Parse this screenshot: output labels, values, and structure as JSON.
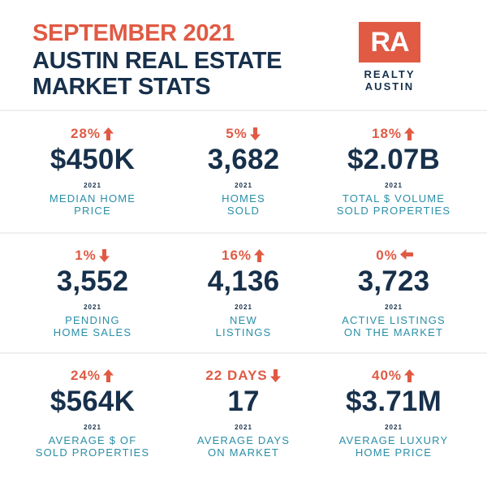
{
  "header": {
    "title_line1": "SEPTEMBER 2021",
    "title_line2": "AUSTIN REAL ESTATE",
    "title_line3": "MARKET STATS",
    "logo_letters": "RA",
    "logo_line1": "REALTY",
    "logo_line2": "AUSTIN"
  },
  "colors": {
    "accent": "#e05a44",
    "navy": "#17304b",
    "teal": "#2a8fa8"
  },
  "stats": [
    {
      "change": "28%",
      "direction": "up",
      "value": "$450K",
      "year": "2021",
      "label_line1": "MEDIAN HOME",
      "label_line2": "PRICE"
    },
    {
      "change": "5%",
      "direction": "down",
      "value": "3,682",
      "year": "2021",
      "label_line1": "HOMES",
      "label_line2": "SOLD"
    },
    {
      "change": "18%",
      "direction": "up",
      "value": "$2.07B",
      "year": "2021",
      "label_line1": "TOTAL $ VOLUME",
      "label_line2": "SOLD PROPERTIES"
    },
    {
      "change": "1%",
      "direction": "down",
      "value": "3,552",
      "year": "2021",
      "label_line1": "PENDING",
      "label_line2": "HOME SALES"
    },
    {
      "change": "16%",
      "direction": "up",
      "value": "4,136",
      "year": "2021",
      "label_line1": "NEW",
      "label_line2": "LISTINGS"
    },
    {
      "change": "0%",
      "direction": "left",
      "value": "3,723",
      "year": "2021",
      "label_line1": "ACTIVE LISTINGS",
      "label_line2": "ON THE MARKET"
    },
    {
      "change": "24%",
      "direction": "up",
      "value": "$564K",
      "year": "2021",
      "label_line1": "AVERAGE $ OF",
      "label_line2": "SOLD PROPERTIES"
    },
    {
      "change": "22 DAYS",
      "direction": "down",
      "value": "17",
      "year": "2021",
      "label_line1": "AVERAGE DAYS",
      "label_line2": "ON MARKET"
    },
    {
      "change": "40%",
      "direction": "up",
      "value": "$3.71M",
      "year": "2021",
      "label_line1": "AVERAGE LUXURY",
      "label_line2": "HOME PRICE"
    }
  ]
}
